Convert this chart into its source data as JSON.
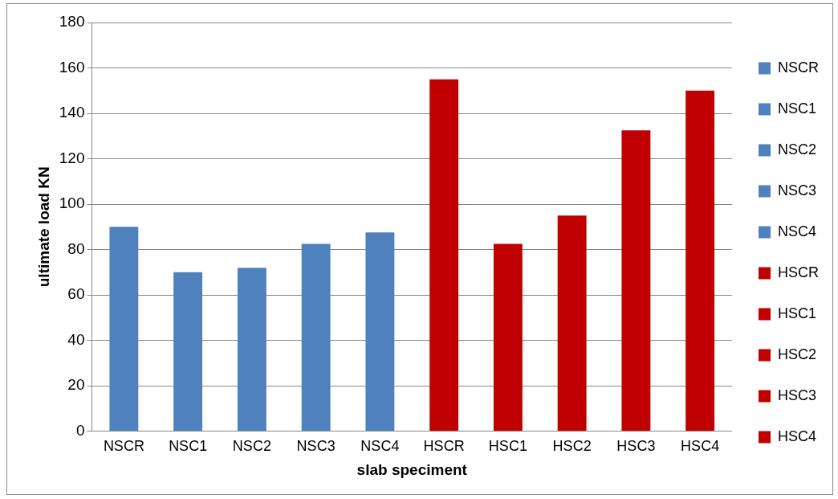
{
  "chart_data": {
    "type": "bar",
    "xlabel": "slab speciment",
    "ylabel": "ultimate load KN",
    "stacked": true,
    "categories": [
      "NSCR",
      "NSC1",
      "NSC2",
      "NSC3",
      "NSC4",
      "HSCR",
      "HSC1",
      "HSC2",
      "HSC3",
      "HSC4"
    ],
    "series": [
      {
        "name": "NSCR",
        "color": "#4f81bd",
        "values": [
          90,
          null,
          null,
          null,
          null,
          null,
          null,
          null,
          null,
          null
        ]
      },
      {
        "name": "NSC1",
        "color": "#4f81bd",
        "values": [
          null,
          70,
          null,
          null,
          null,
          null,
          null,
          null,
          null,
          null
        ]
      },
      {
        "name": "NSC2",
        "color": "#4f81bd",
        "values": [
          null,
          null,
          72,
          null,
          null,
          null,
          null,
          null,
          null,
          null
        ]
      },
      {
        "name": "NSC3",
        "color": "#4f81bd",
        "values": [
          null,
          null,
          null,
          82.5,
          null,
          null,
          null,
          null,
          null,
          null
        ]
      },
      {
        "name": "NSC4",
        "color": "#4f81bd",
        "values": [
          null,
          null,
          null,
          null,
          87.5,
          null,
          null,
          null,
          null,
          null
        ]
      },
      {
        "name": "HSCR",
        "color": "#c00000",
        "values": [
          null,
          null,
          null,
          null,
          null,
          155,
          null,
          null,
          null,
          null
        ]
      },
      {
        "name": "HSC1",
        "color": "#c00000",
        "values": [
          null,
          null,
          null,
          null,
          null,
          null,
          82.5,
          null,
          null,
          null
        ]
      },
      {
        "name": "HSC2",
        "color": "#c00000",
        "values": [
          null,
          null,
          null,
          null,
          null,
          null,
          null,
          95,
          null,
          null
        ]
      },
      {
        "name": "HSC3",
        "color": "#c00000",
        "values": [
          null,
          null,
          null,
          null,
          null,
          null,
          null,
          null,
          132.5,
          null
        ]
      },
      {
        "name": "HSC4",
        "color": "#c00000",
        "values": [
          null,
          null,
          null,
          null,
          null,
          null,
          null,
          null,
          null,
          150
        ]
      }
    ],
    "ylim": [
      0,
      180
    ],
    "yticks": [
      0,
      20,
      40,
      60,
      80,
      100,
      120,
      140,
      160,
      180
    ],
    "grid": "y",
    "legend": "right"
  }
}
